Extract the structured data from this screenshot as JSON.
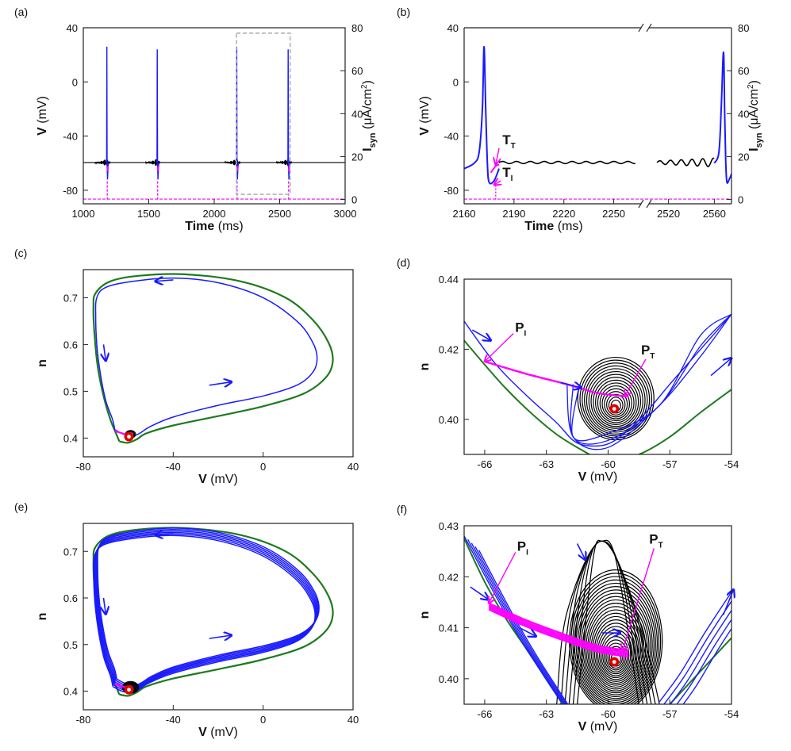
{
  "chart_data": [
    {
      "id": "a",
      "panel_label": "(a)",
      "type": "line",
      "xlabel": "Time",
      "xunit": "(ms)",
      "ylabel": "V",
      "yunit": "(mV)",
      "y2label": "I",
      "y2sub": "syn",
      "y2unit": "(μA/cm",
      "y2unit_sup": "2",
      "y2unit_close": ")",
      "xlim": [
        1000,
        3000
      ],
      "ylim": [
        -90,
        40
      ],
      "y2lim": [
        -2,
        80
      ],
      "xticks": [
        "1000",
        "1500",
        "2000",
        "2500",
        "3000"
      ],
      "yticks": [
        "-80",
        "-40",
        "0",
        "40"
      ],
      "y2ticks": [
        "0",
        "20",
        "40",
        "60",
        "80"
      ],
      "spikes_ms": [
        1180,
        1565,
        2172,
        2565
      ],
      "spike_peak_mV": 26,
      "rest_mV": -59.5,
      "inset_box": {
        "x": [
          2170,
          2580
        ],
        "y": [
          -83,
          36
        ]
      },
      "colors": {
        "V": "#1a1aff",
        "Isyn": "#ff00ff",
        "osc": "#000000",
        "box": "#b0b0b0"
      }
    },
    {
      "id": "b",
      "panel_label": "(b)",
      "type": "line",
      "xlabel": "Time",
      "xunit": "(ms)",
      "ylabel": "V",
      "yunit": "(mV)",
      "y2label": "I",
      "y2sub": "syn",
      "y2unit": "(μA/cm",
      "y2unit_sup": "2",
      "y2unit_close": ")",
      "xlim_left": [
        2160,
        2265
      ],
      "xlim_right": [
        2505,
        2575
      ],
      "ylim": [
        -90,
        40
      ],
      "y2lim": [
        -2,
        80
      ],
      "xticks_left": [
        "2160",
        "2190",
        "2220",
        "2250"
      ],
      "xticks_right": [
        "2520",
        "2560"
      ],
      "yticks": [
        "-80",
        "-40",
        "0",
        "40"
      ],
      "y2ticks": [
        "0",
        "20",
        "40",
        "60",
        "80"
      ],
      "spike_times_ms": [
        2172,
        2568
      ],
      "spike_peak_mV": 26,
      "rest_mV": -59.5,
      "annotations": [
        {
          "text": "T",
          "sub": "T",
          "at_ms": 2179,
          "at_mV": -61
        },
        {
          "text": "T",
          "sub": "I",
          "at_ms": 2178,
          "at_mV": -76
        }
      ],
      "colors": {
        "V": "#1a1aff",
        "Isyn": "#ff00ff",
        "osc": "#000000"
      }
    },
    {
      "id": "c",
      "panel_label": "(c)",
      "type": "line",
      "xlabel": "V",
      "xunit": "(mV)",
      "ylabel": "n",
      "xlim": [
        -80,
        40
      ],
      "ylim": [
        0.36,
        0.76
      ],
      "xticks": [
        "-80",
        "-40",
        "0",
        "40"
      ],
      "yticks": [
        "0.4",
        "0.5",
        "0.6",
        "0.7"
      ],
      "series": [
        {
          "key": "limit_cycle",
          "color": "#1e7a1e",
          "points": [
            [
              -64,
              0.393
            ],
            [
              -60,
              0.39
            ],
            [
              -56,
              0.398
            ],
            [
              -52,
              0.41
            ],
            [
              -40,
              0.427
            ],
            [
              -20,
              0.447
            ],
            [
              0,
              0.468
            ],
            [
              18,
              0.495
            ],
            [
              28,
              0.53
            ],
            [
              31,
              0.565
            ],
            [
              29,
              0.605
            ],
            [
              22,
              0.653
            ],
            [
              10,
              0.7
            ],
            [
              -10,
              0.735
            ],
            [
              -35,
              0.75
            ],
            [
              -55,
              0.747
            ],
            [
              -68,
              0.735
            ],
            [
              -74.5,
              0.71
            ],
            [
              -75.5,
              0.68
            ],
            [
              -75,
              0.62
            ],
            [
              -73.5,
              0.55
            ],
            [
              -71,
              0.49
            ],
            [
              -68,
              0.44
            ],
            [
              -65,
              0.405
            ],
            [
              -64,
              0.393
            ]
          ]
        },
        {
          "key": "trajectory",
          "color": "#1a1aff",
          "points": [
            [
              -66,
              0.418
            ],
            [
              -62,
              0.408
            ],
            [
              -58,
              0.405
            ],
            [
              -55,
              0.41
            ],
            [
              -50,
              0.425
            ],
            [
              -40,
              0.445
            ],
            [
              -20,
              0.47
            ],
            [
              0,
              0.49
            ],
            [
              15,
              0.513
            ],
            [
              22,
              0.54
            ],
            [
              24,
              0.57
            ],
            [
              22,
              0.605
            ],
            [
              15,
              0.65
            ],
            [
              0,
              0.7
            ],
            [
              -20,
              0.732
            ],
            [
              -40,
              0.742
            ],
            [
              -58,
              0.735
            ],
            [
              -70,
              0.722
            ],
            [
              -74,
              0.7
            ],
            [
              -74.5,
              0.66
            ],
            [
              -74,
              0.6
            ],
            [
              -72.5,
              0.54
            ],
            [
              -70,
              0.48
            ],
            [
              -67,
              0.44
            ],
            [
              -66,
              0.418
            ]
          ]
        }
      ],
      "arrows": [
        {
          "from": [
            -40,
            0.738
          ],
          "to": [
            -48,
            0.735
          ]
        },
        {
          "from": [
            -71,
            0.6
          ],
          "to": [
            -70,
            0.565
          ]
        },
        {
          "from": [
            -24,
            0.513
          ],
          "to": [
            -14,
            0.52
          ]
        }
      ],
      "fixed_point": [
        -59.7,
        0.403
      ],
      "colors": {
        "osc": "#000000",
        "Isyn": "#ff00ff",
        "fixed_point": "#e00000"
      }
    },
    {
      "id": "d",
      "panel_label": "(d)",
      "type": "line",
      "xlabel": "V",
      "xunit": "(mV)",
      "ylabel": "n",
      "xlim": [
        -67,
        -54
      ],
      "ylim": [
        0.39,
        0.44
      ],
      "xticks": [
        "-66",
        "-63",
        "-60",
        "-57",
        "-54"
      ],
      "yticks": [
        "0.40",
        "0.42",
        "0.44"
      ],
      "series": [
        {
          "key": "limit_cycle",
          "color": "#1e7a1e",
          "points": [
            [
              -67,
              0.4225
            ],
            [
              -65,
              0.409
            ],
            [
              -63,
              0.398
            ],
            [
              -61.5,
              0.392
            ],
            [
              -60,
              0.388
            ],
            [
              -58.5,
              0.39
            ],
            [
              -57,
              0.395
            ],
            [
              -55.5,
              0.402
            ],
            [
              -54,
              0.4085
            ]
          ]
        },
        {
          "key": "trajectory",
          "color": "#1a1aff",
          "points": [
            [
              -67,
              0.428
            ],
            [
              -65.5,
              0.416
            ],
            [
              -64,
              0.407
            ],
            [
              -62.5,
              0.399
            ],
            [
              -61.7,
              0.394
            ],
            [
              -61,
              0.3925
            ],
            [
              -60,
              0.393
            ],
            [
              -59,
              0.397
            ],
            [
              -58,
              0.403
            ],
            [
              -57,
              0.41
            ],
            [
              -55.5,
              0.42
            ],
            [
              -54,
              0.43
            ]
          ]
        },
        {
          "key": "pi_to_pt",
          "color": "#ff00ff",
          "points": [
            [
              -66,
              0.4165
            ],
            [
              -64,
              0.413
            ],
            [
              -62,
              0.41
            ],
            [
              -60.5,
              0.4075
            ],
            [
              -59,
              0.4065
            ]
          ]
        }
      ],
      "annotations": [
        {
          "text": "P",
          "sub": "I",
          "at": [
            -66,
            0.4165
          ]
        },
        {
          "text": "P",
          "sub": "T",
          "at": [
            -59.2,
            0.4065
          ]
        }
      ],
      "fixed_point": [
        -59.7,
        0.403
      ],
      "colors": {
        "osc": "#000000",
        "fixed_point": "#e00000"
      }
    },
    {
      "id": "e",
      "panel_label": "(e)",
      "type": "line",
      "xlabel": "V",
      "xunit": "(mV)",
      "ylabel": "n",
      "xlim": [
        -80,
        40
      ],
      "ylim": [
        0.36,
        0.76
      ],
      "xticks": [
        "-80",
        "-40",
        "0",
        "40"
      ],
      "yticks": [
        "0.4",
        "0.5",
        "0.6",
        "0.7"
      ],
      "series": [
        {
          "key": "limit_cycle",
          "color": "#1e7a1e",
          "points": [
            [
              -64,
              0.393
            ],
            [
              -60,
              0.39
            ],
            [
              -56,
              0.398
            ],
            [
              -52,
              0.41
            ],
            [
              -40,
              0.427
            ],
            [
              -20,
              0.447
            ],
            [
              0,
              0.468
            ],
            [
              18,
              0.495
            ],
            [
              28,
              0.53
            ],
            [
              31,
              0.565
            ],
            [
              29,
              0.605
            ],
            [
              22,
              0.653
            ],
            [
              10,
              0.7
            ],
            [
              -10,
              0.735
            ],
            [
              -35,
              0.75
            ],
            [
              -55,
              0.747
            ],
            [
              -68,
              0.735
            ],
            [
              -74.5,
              0.71
            ],
            [
              -75.5,
              0.68
            ],
            [
              -75,
              0.62
            ],
            [
              -73.5,
              0.55
            ],
            [
              -71,
              0.49
            ],
            [
              -68,
              0.44
            ],
            [
              -65,
              0.405
            ],
            [
              -64,
              0.393
            ]
          ]
        },
        {
          "key": "trajectory",
          "color": "#1a1aff",
          "points": [
            [
              -66,
              0.418
            ],
            [
              -62,
              0.408
            ],
            [
              -58,
              0.405
            ],
            [
              -55,
              0.41
            ],
            [
              -50,
              0.425
            ],
            [
              -40,
              0.445
            ],
            [
              -20,
              0.47
            ],
            [
              0,
              0.49
            ],
            [
              15,
              0.513
            ],
            [
              22,
              0.54
            ],
            [
              24,
              0.57
            ],
            [
              22,
              0.605
            ],
            [
              15,
              0.65
            ],
            [
              0,
              0.7
            ],
            [
              -20,
              0.732
            ],
            [
              -40,
              0.742
            ],
            [
              -58,
              0.735
            ],
            [
              -70,
              0.722
            ],
            [
              -74,
              0.7
            ],
            [
              -74.5,
              0.66
            ],
            [
              -74,
              0.6
            ],
            [
              -72.5,
              0.54
            ],
            [
              -70,
              0.48
            ],
            [
              -67,
              0.44
            ],
            [
              -66,
              0.418
            ]
          ]
        }
      ],
      "arrows": [
        {
          "from": [
            -40,
            0.738
          ],
          "to": [
            -48,
            0.735
          ]
        },
        {
          "from": [
            -71,
            0.6
          ],
          "to": [
            -70,
            0.565
          ]
        },
        {
          "from": [
            -24,
            0.513
          ],
          "to": [
            -14,
            0.52
          ]
        }
      ],
      "fixed_point": [
        -59.7,
        0.403
      ],
      "colors": {
        "osc": "#000000",
        "Isyn": "#ff00ff",
        "fixed_point": "#e00000"
      }
    },
    {
      "id": "f",
      "panel_label": "(f)",
      "type": "line",
      "xlabel": "V",
      "xunit": "(mV)",
      "ylabel": "n",
      "xlim": [
        -67,
        -54
      ],
      "ylim": [
        0.395,
        0.43
      ],
      "xticks": [
        "-66",
        "-63",
        "-60",
        "-57",
        "-54"
      ],
      "yticks": [
        "0.40",
        "0.41",
        "0.42",
        "0.43"
      ],
      "series": [
        {
          "key": "limit_cycle",
          "color": "#1e7a1e",
          "points": [
            [
              -67,
              0.4275
            ],
            [
              -66,
              0.419
            ],
            [
              -65,
              0.412
            ],
            [
              -64,
              0.406
            ],
            [
              -63,
              0.4
            ],
            [
              -62.2,
              0.395
            ]
          ]
        },
        {
          "key": "limit_cycle_right",
          "color": "#1e7a1e",
          "points": [
            [
              -57,
              0.395
            ],
            [
              -55.5,
              0.4015
            ],
            [
              -54,
              0.408
            ]
          ]
        },
        {
          "key": "trajectory",
          "color": "#1a1aff",
          "points": [
            [
              -67,
              0.428
            ],
            [
              -65.5,
              0.4165
            ],
            [
              -64.3,
              0.408
            ],
            [
              -63.2,
              0.401
            ],
            [
              -62.3,
              0.3955
            ]
          ]
        },
        {
          "key": "trajectory_right",
          "color": "#1a1aff",
          "points": [
            [
              -57.5,
              0.3955
            ],
            [
              -56.5,
              0.401
            ],
            [
              -55.3,
              0.409
            ],
            [
              -54,
              0.417
            ]
          ]
        },
        {
          "key": "pi_to_pt",
          "color": "#ff00ff",
          "points": [
            [
              -65.8,
              0.4148
            ],
            [
              -64,
              0.4115
            ],
            [
              -62,
              0.4085
            ],
            [
              -60.5,
              0.4065
            ],
            [
              -59,
              0.4055
            ]
          ]
        }
      ],
      "annotations": [
        {
          "text": "P",
          "sub": "I",
          "at": [
            -65.8,
            0.4148
          ]
        },
        {
          "text": "P",
          "sub": "T",
          "at": [
            -59.3,
            0.4055
          ]
        }
      ],
      "fixed_point": [
        -59.7,
        0.4033
      ],
      "colors": {
        "osc": "#000000",
        "fixed_point": "#e00000"
      }
    }
  ]
}
